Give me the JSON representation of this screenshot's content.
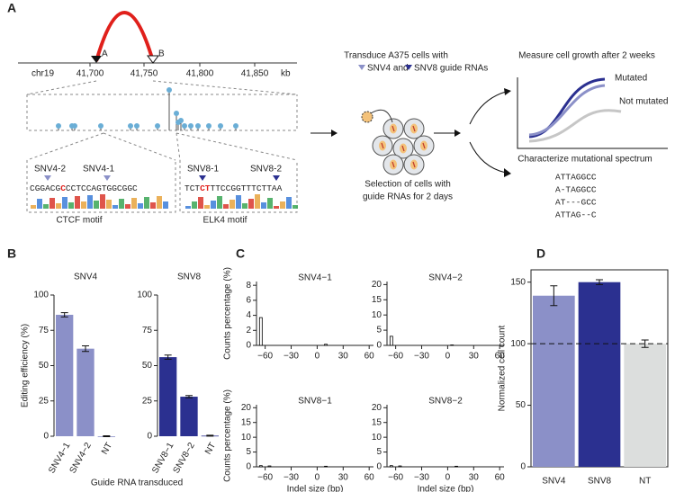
{
  "panel_labels": [
    "A",
    "B",
    "C",
    "D"
  ],
  "diagram": {
    "chromosome": "chr19",
    "coord_ticks": [
      "41,700",
      "41,750",
      "41,800",
      "41,850"
    ],
    "unit": "kb",
    "anchors": [
      "A",
      "B"
    ],
    "guides": [
      "SNV4-2",
      "SNV4-1",
      "SNV8-1",
      "SNV8-2"
    ],
    "sequences": [
      [
        "CGGACG",
        "C",
        "CCTCCAGTGGCGGC"
      ],
      [
        "TCT",
        "CT",
        "TTCCGGTTTCTTAA"
      ]
    ],
    "motifs": [
      "CTCF motif",
      "ELK4 motif"
    ],
    "transduce": [
      "Transduce A375 cells with",
      "SNV4 and",
      "SNV8 guide RNAs"
    ],
    "selection": [
      "Selection of cells with",
      "guide RNAs for 2 days"
    ],
    "growth": "Measure cell growth after 2 weeks",
    "curves": [
      "Mutated",
      "Not mutated"
    ],
    "spectrum": "Characterize mutational spectrum",
    "alignments": [
      "ATTAGGCC",
      "A-TAGGCC",
      "AT---GCC",
      "ATTAG--C"
    ]
  },
  "chart_data": [
    {
      "type": "bar",
      "title": "SNV4",
      "ylabel": "Editing efficiency (%)",
      "xlabel": "Guide RNA transduced",
      "categories": [
        "SNV4−1",
        "SNV4−2",
        "NT"
      ],
      "values": [
        86,
        62,
        0
      ],
      "errors": [
        1.5,
        2,
        0.3
      ],
      "color": "#8b90c8",
      "ylim": [
        0,
        100
      ],
      "yticks": [
        0,
        25,
        50,
        75,
        100
      ]
    },
    {
      "type": "bar",
      "title": "SNV8",
      "categories": [
        "SNV8−1",
        "SNV8−2",
        "NT"
      ],
      "values": [
        56,
        28,
        0.4
      ],
      "errors": [
        1.5,
        0.8,
        0.3
      ],
      "color": "#2b3090",
      "ylim": [
        0,
        100
      ],
      "yticks": [
        0,
        25,
        50,
        75,
        100
      ]
    },
    {
      "type": "spike",
      "title": "SNV4−1",
      "ylabel": "Counts percentage (%)",
      "x": [
        -65,
        10
      ],
      "values": [
        3.7,
        0.15
      ],
      "color": "#000000",
      "xlim": [
        -70,
        65
      ],
      "xticks": [
        {
          "value": -60,
          "label": "−60"
        },
        {
          "value": -30,
          "label": "−30"
        },
        0,
        30,
        60
      ],
      "ylim": [
        0,
        8.5
      ],
      "yticks": [
        0,
        2,
        4,
        6,
        8
      ]
    },
    {
      "type": "spike",
      "title": "SNV4−2",
      "x": [
        -65,
        5
      ],
      "values": [
        3,
        0.15
      ],
      "color": "#000000",
      "xlim": [
        -70,
        65
      ],
      "xticks": [
        {
          "value": -60,
          "label": "−60"
        },
        {
          "value": -30,
          "label": "−30"
        },
        0,
        30,
        60
      ],
      "ylim": [
        0,
        21
      ],
      "yticks": [
        0,
        5,
        10,
        15,
        20
      ]
    },
    {
      "type": "spike",
      "title": "SNV8−1",
      "ylabel": "Counts percentage (%)",
      "xlabel": "Indel size (bp)",
      "x": [
        -65,
        -55,
        10
      ],
      "values": [
        0.4,
        0.3,
        0.2
      ],
      "color": "#000000",
      "xlim": [
        -70,
        65
      ],
      "xticks": [
        {
          "value": -60,
          "label": "−60"
        },
        {
          "value": -30,
          "label": "−30"
        },
        0,
        30,
        60
      ],
      "ylim": [
        0,
        21
      ],
      "yticks": [
        0,
        5,
        10,
        15,
        20
      ]
    },
    {
      "type": "spike",
      "title": "SNV8−2",
      "xlabel": "Indel size (bp)",
      "x": [
        -65,
        -55,
        10
      ],
      "values": [
        0.4,
        0.3,
        0.2
      ],
      "color": "#000000",
      "xlim": [
        -70,
        65
      ],
      "xticks": [
        {
          "value": -60,
          "label": "−60"
        },
        {
          "value": -30,
          "label": "−30"
        },
        0,
        30,
        60
      ],
      "ylim": [
        0,
        21
      ],
      "yticks": [
        0,
        5,
        10,
        15,
        20
      ]
    },
    {
      "type": "bar",
      "ylabel": "Normalized cell count",
      "categories": [
        "SNV4",
        "SNV8",
        "NT"
      ],
      "values": [
        139,
        150,
        100
      ],
      "errors": [
        8,
        2,
        3
      ],
      "colors": [
        "#8b90c8",
        "#2b3090",
        "#dcdedd"
      ],
      "ylim": [
        0,
        160
      ],
      "yticks": [
        0,
        50,
        100,
        150
      ],
      "hline": 100,
      "frame": true
    }
  ]
}
